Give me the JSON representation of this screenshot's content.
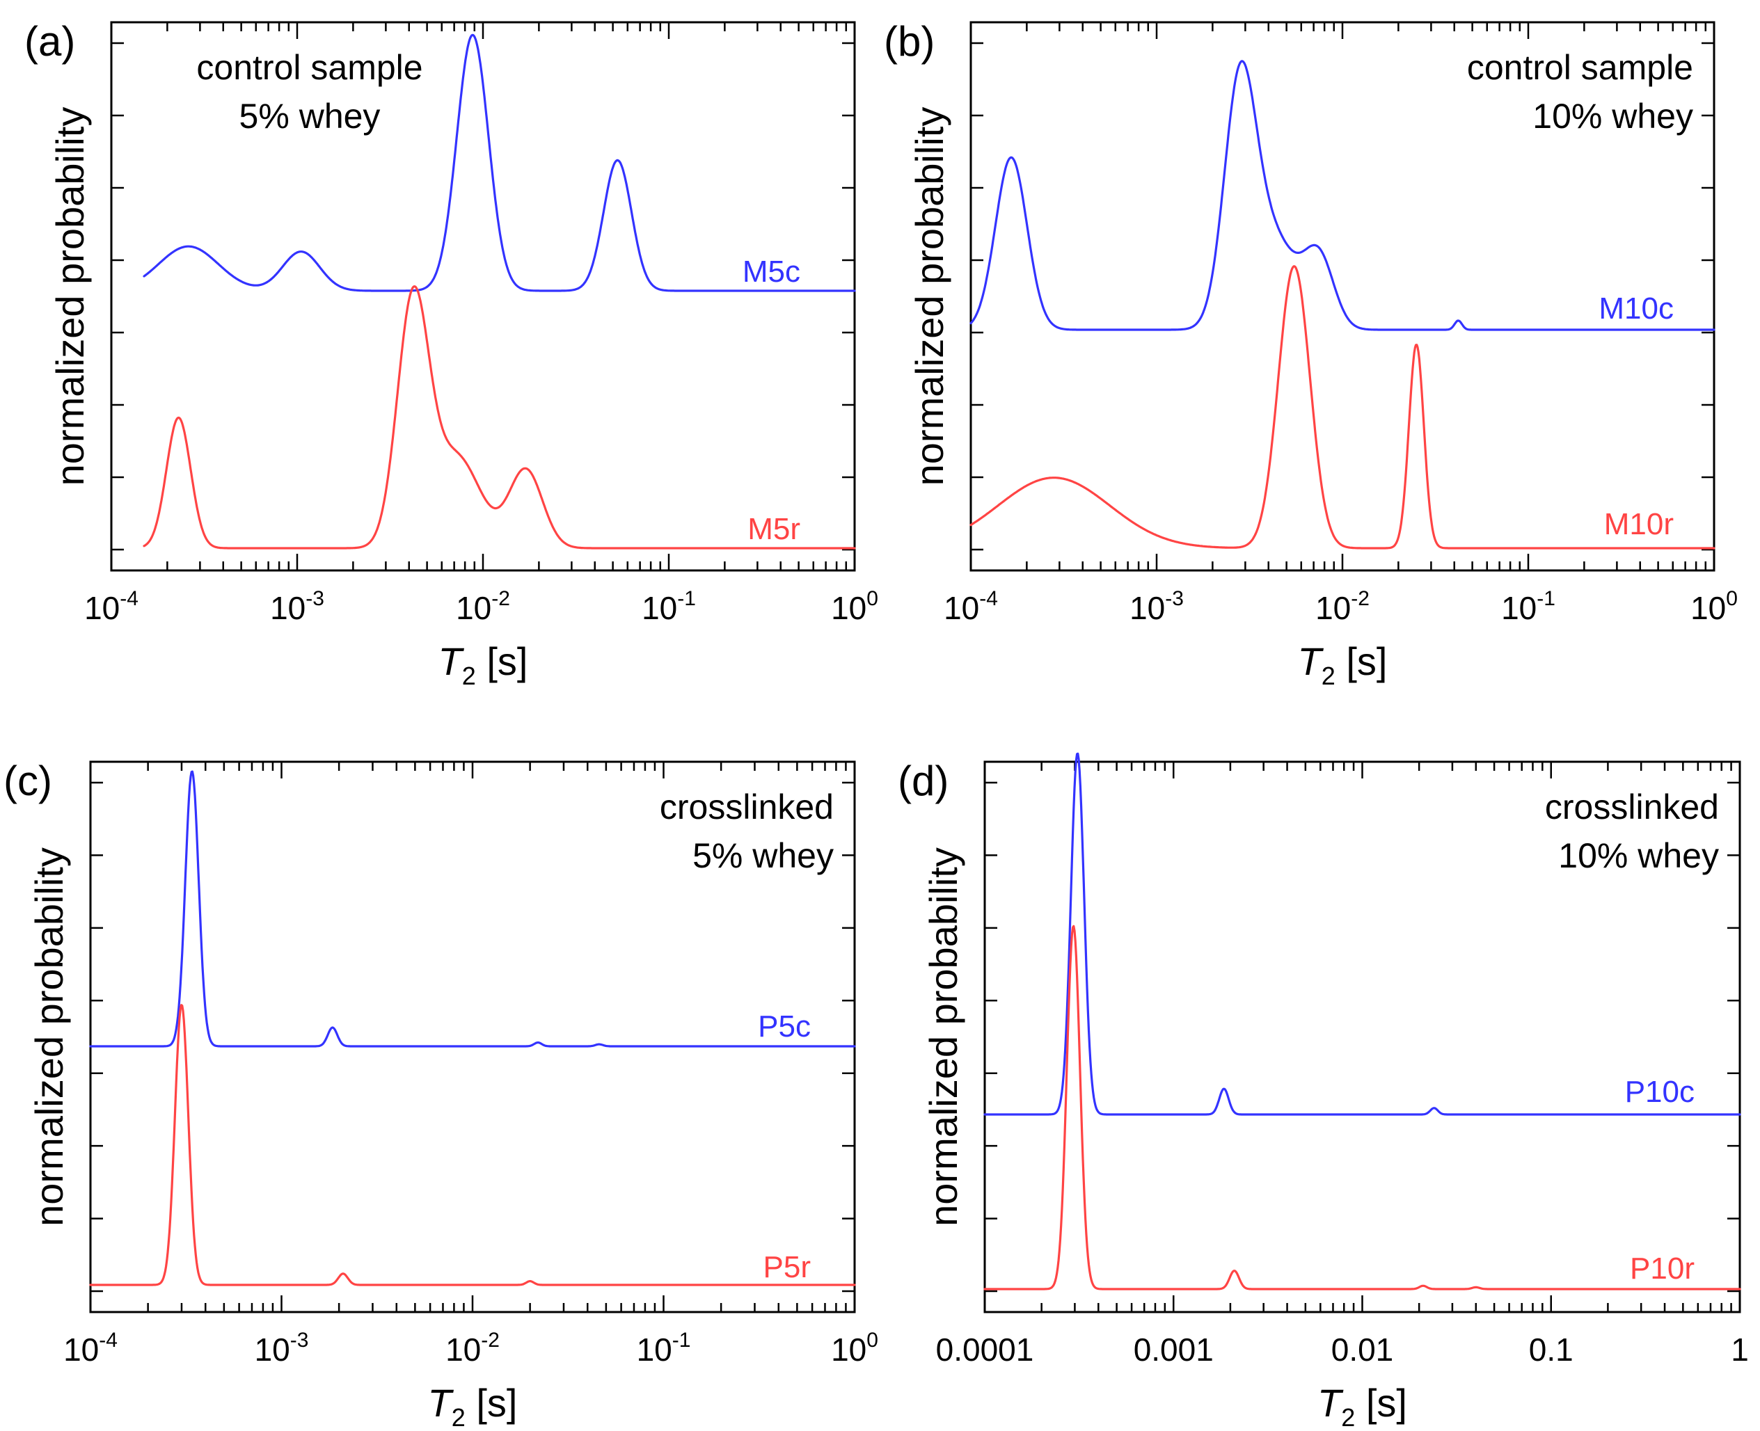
{
  "chart_data": [
    {
      "type": "line",
      "panel_label": "(a)",
      "annotation": [
        "control sample",
        "5% whey"
      ],
      "annotation_align": "left",
      "xlabel_main": "T",
      "xlabel_sub": "2",
      "xlabel_unit": " [s]",
      "ylabel": "normalized probability",
      "x_scale": "log",
      "xlim": [
        0.0001,
        1
      ],
      "tick_style": "power",
      "xticks": [
        {
          "value": 0.0001,
          "base": "10",
          "exp": "-4",
          "text": ""
        },
        {
          "value": 0.001,
          "base": "10",
          "exp": "-3",
          "text": ""
        },
        {
          "value": 0.01,
          "base": "10",
          "exp": "-2",
          "text": ""
        },
        {
          "value": 0.1,
          "base": "10",
          "exp": "-1",
          "text": ""
        },
        {
          "value": 1,
          "base": "10",
          "exp": "0",
          "text": ""
        }
      ],
      "ylim": [
        0,
        2.1
      ],
      "grid": false,
      "series": [
        {
          "name": "M5c",
          "color": "#3333ff",
          "baseline": 1.0,
          "x_range": [
            0.00015,
            1
          ],
          "peaks": [
            {
              "center": 0.00026,
              "height": 0.17,
              "width": 0.16
            },
            {
              "center": 0.00105,
              "height": 0.15,
              "width": 0.1
            },
            {
              "center": 0.0088,
              "height": 0.98,
              "width": 0.085
            },
            {
              "center": 0.053,
              "height": 0.5,
              "width": 0.075
            }
          ]
        },
        {
          "name": "M5r",
          "color": "#ff4444",
          "baseline": 0.0,
          "x_range": [
            0.00015,
            1
          ],
          "peaks": [
            {
              "center": 0.00023,
              "height": 0.5,
              "width": 0.065
            },
            {
              "center": 0.0042,
              "height": 0.93,
              "width": 0.085
            },
            {
              "center": 0.0072,
              "height": 0.35,
              "width": 0.13
            },
            {
              "center": 0.017,
              "height": 0.3,
              "width": 0.09
            }
          ]
        }
      ]
    },
    {
      "type": "line",
      "panel_label": "(b)",
      "annotation": [
        "control sample",
        "10% whey"
      ],
      "annotation_align": "right",
      "xlabel_main": "T",
      "xlabel_sub": "2",
      "xlabel_unit": " [s]",
      "ylabel": "normalized probability",
      "x_scale": "log",
      "xlim": [
        0.0001,
        1
      ],
      "tick_style": "power",
      "xticks": [
        {
          "value": 0.0001,
          "base": "10",
          "exp": "-4",
          "text": ""
        },
        {
          "value": 0.001,
          "base": "10",
          "exp": "-3",
          "text": ""
        },
        {
          "value": 0.01,
          "base": "10",
          "exp": "-2",
          "text": ""
        },
        {
          "value": 0.1,
          "base": "10",
          "exp": "-1",
          "text": ""
        },
        {
          "value": 1,
          "base": "10",
          "exp": "0",
          "text": ""
        }
      ],
      "ylim": [
        0,
        2.1
      ],
      "grid": false,
      "series": [
        {
          "name": "M10c",
          "color": "#3333ff",
          "baseline": 0.88,
          "x_range": [
            0.0001,
            1
          ],
          "peaks": [
            {
              "center": 0.000165,
              "height": 0.66,
              "width": 0.085
            },
            {
              "center": 0.0028,
              "height": 0.88,
              "width": 0.085
            },
            {
              "center": 0.0042,
              "height": 0.35,
              "width": 0.13
            },
            {
              "center": 0.0075,
              "height": 0.26,
              "width": 0.08
            },
            {
              "center": 0.042,
              "height": 0.035,
              "width": 0.02
            }
          ]
        },
        {
          "name": "M10r",
          "color": "#ff4444",
          "baseline": 0.0,
          "x_range": [
            0.0001,
            1
          ],
          "peaks": [
            {
              "center": 0.00028,
              "height": 0.27,
              "width": 0.3
            },
            {
              "center": 0.0055,
              "height": 1.08,
              "width": 0.085
            },
            {
              "center": 0.025,
              "height": 0.78,
              "width": 0.04
            }
          ]
        }
      ]
    },
    {
      "type": "line",
      "panel_label": "(c)",
      "annotation": [
        "crosslinked",
        "5% whey"
      ],
      "annotation_align": "right",
      "xlabel_main": "T",
      "xlabel_sub": "2",
      "xlabel_unit": " [s]",
      "ylabel": "normalized probability",
      "x_scale": "log",
      "xlim": [
        0.0001,
        1
      ],
      "tick_style": "power",
      "xticks": [
        {
          "value": 0.0001,
          "base": "10",
          "exp": "-4",
          "text": ""
        },
        {
          "value": 0.001,
          "base": "10",
          "exp": "-3",
          "text": ""
        },
        {
          "value": 0.01,
          "base": "10",
          "exp": "-2",
          "text": ""
        },
        {
          "value": 0.1,
          "base": "10",
          "exp": "-1",
          "text": ""
        },
        {
          "value": 1,
          "base": "10",
          "exp": "0",
          "text": ""
        }
      ],
      "ylim": [
        0,
        2.2
      ],
      "grid": false,
      "series": [
        {
          "name": "P5c",
          "color": "#3333ff",
          "baseline": 1.0,
          "x_range": [
            0.0001,
            1
          ],
          "peaks": [
            {
              "center": 0.00034,
              "height": 1.1,
              "width": 0.035
            },
            {
              "center": 0.00185,
              "height": 0.075,
              "width": 0.025
            },
            {
              "center": 0.022,
              "height": 0.015,
              "width": 0.02
            },
            {
              "center": 0.046,
              "height": 0.008,
              "width": 0.02
            }
          ]
        },
        {
          "name": "P5r",
          "color": "#ff4444",
          "baseline": 0.0,
          "x_range": [
            0.0001,
            1
          ],
          "peaks": [
            {
              "center": 0.0003,
              "height": 1.12,
              "width": 0.035
            },
            {
              "center": 0.0021,
              "height": 0.045,
              "width": 0.025
            },
            {
              "center": 0.02,
              "height": 0.015,
              "width": 0.02
            }
          ]
        }
      ]
    },
    {
      "type": "line",
      "panel_label": "(d)",
      "annotation": [
        "crosslinked",
        "10% whey"
      ],
      "annotation_align": "right",
      "xlabel_main": "T",
      "xlabel_sub": "2",
      "xlabel_unit": " [s]",
      "ylabel": "normalized probability",
      "x_scale": "log",
      "xlim": [
        0.0001,
        1
      ],
      "tick_style": "plain",
      "xticks": [
        {
          "value": 0.0001,
          "base": "",
          "exp": "",
          "text": "0.0001"
        },
        {
          "value": 0.001,
          "base": "",
          "exp": "",
          "text": "0.001"
        },
        {
          "value": 0.01,
          "base": "",
          "exp": "",
          "text": "0.01"
        },
        {
          "value": 0.1,
          "base": "",
          "exp": "",
          "text": "0.1"
        },
        {
          "value": 1,
          "base": "",
          "exp": "",
          "text": "1"
        }
      ],
      "ylim": [
        0,
        3.0
      ],
      "grid": false,
      "series": [
        {
          "name": "P10c",
          "color": "#3333ff",
          "baseline": 1.0,
          "x_range": [
            0.0001,
            1
          ],
          "peaks": [
            {
              "center": 0.00031,
              "height": 1.97,
              "width": 0.035
            },
            {
              "center": 0.00185,
              "height": 0.14,
              "width": 0.025
            },
            {
              "center": 0.024,
              "height": 0.035,
              "width": 0.02
            }
          ]
        },
        {
          "name": "P10r",
          "color": "#ff4444",
          "baseline": 0.0,
          "x_range": [
            0.0001,
            1
          ],
          "peaks": [
            {
              "center": 0.000295,
              "height": 1.98,
              "width": 0.035
            },
            {
              "center": 0.0021,
              "height": 0.1,
              "width": 0.025
            },
            {
              "center": 0.021,
              "height": 0.018,
              "width": 0.02
            },
            {
              "center": 0.04,
              "height": 0.01,
              "width": 0.02
            }
          ]
        }
      ]
    }
  ]
}
